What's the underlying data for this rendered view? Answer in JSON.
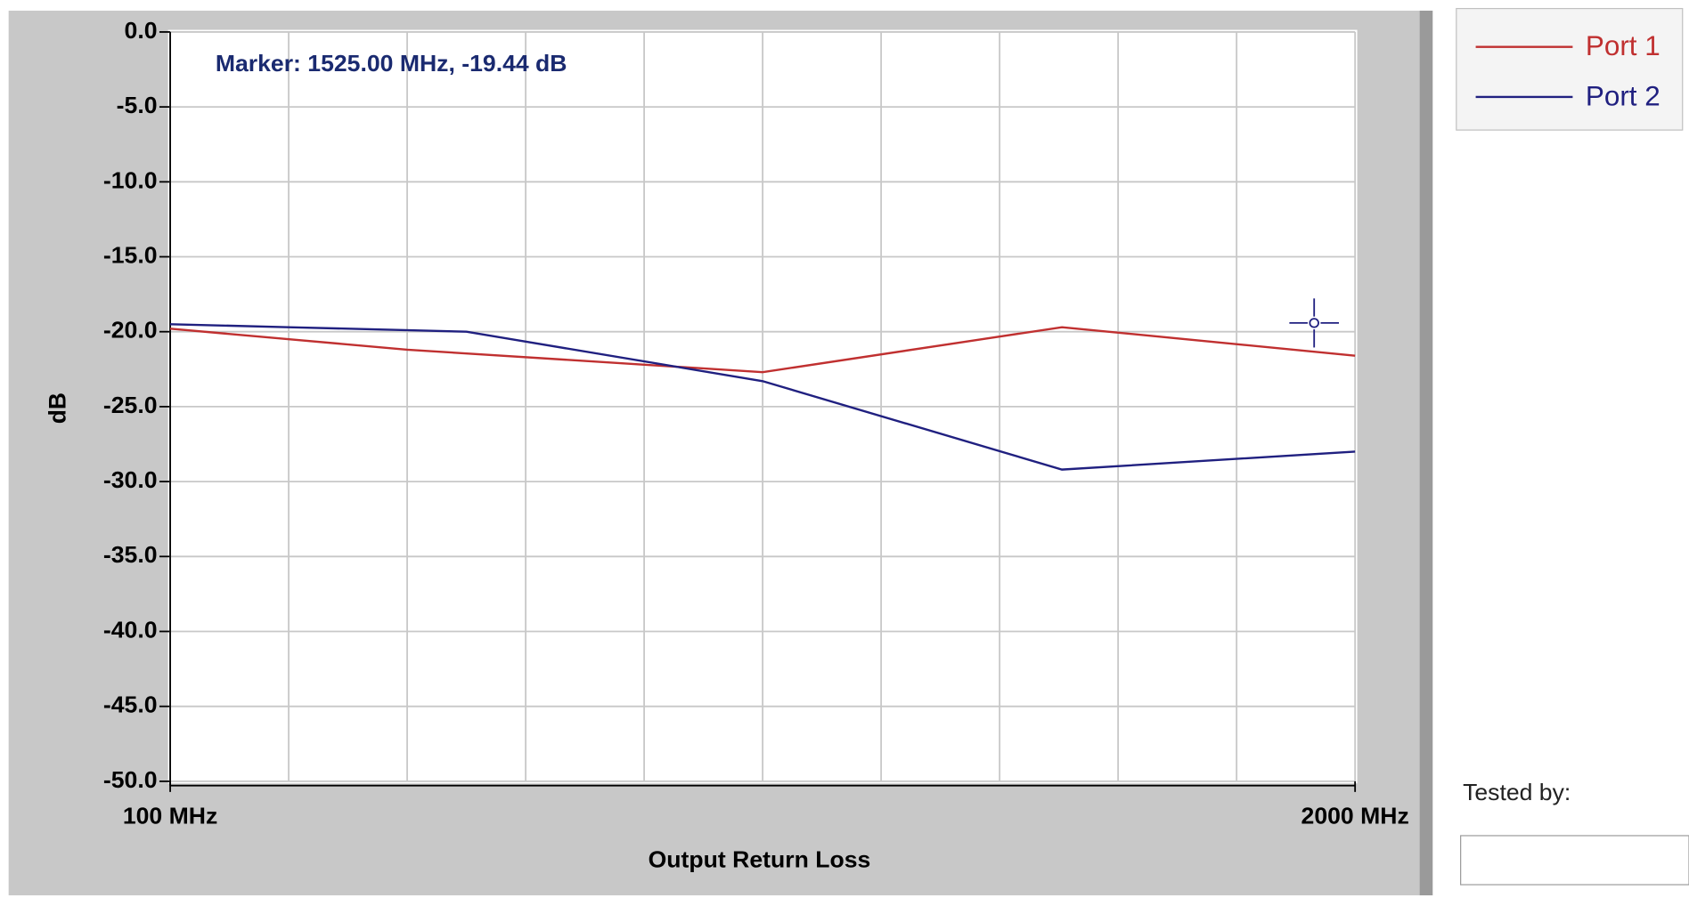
{
  "chart_data": {
    "type": "line",
    "annotation": "Marker: 1525.00 MHz, -19.44 dB",
    "xlabel": "Output Return Loss",
    "ylabel": "dB",
    "xlim": [
      100,
      2000
    ],
    "xticks": [
      {
        "value": 100,
        "label": "100 MHz"
      },
      {
        "value": 2000,
        "label": "2000 MHz"
      }
    ],
    "xgrid": [
      290,
      480,
      670,
      860,
      1050,
      1240,
      1430,
      1620,
      1810
    ],
    "ylim": [
      -50,
      0
    ],
    "yticks": [
      {
        "value": 0,
        "label": "0.0"
      },
      {
        "value": -5,
        "label": "-5.0"
      },
      {
        "value": -10,
        "label": "-10.0"
      },
      {
        "value": -15,
        "label": "-15.0"
      },
      {
        "value": -20,
        "label": "-20.0"
      },
      {
        "value": -25,
        "label": "-25.0"
      },
      {
        "value": -30,
        "label": "-30.0"
      },
      {
        "value": -35,
        "label": "-35.0"
      },
      {
        "value": -40,
        "label": "-40.0"
      },
      {
        "value": -45,
        "label": "-45.0"
      },
      {
        "value": -50,
        "label": "-50.0"
      }
    ],
    "grid": true,
    "legend": "top-right",
    "series": [
      {
        "name": "Port 1",
        "color": "#c03030",
        "x": [
          100,
          480,
          1050,
          1530,
          2000
        ],
        "values": [
          -19.8,
          -21.2,
          -22.7,
          -19.7,
          -21.6
        ]
      },
      {
        "name": "Port 2",
        "color": "#202080",
        "x": [
          100,
          290,
          575,
          1050,
          1530,
          2000
        ],
        "values": [
          -19.5,
          -19.7,
          -20.0,
          -23.3,
          -29.2,
          -28.0
        ]
      }
    ]
  },
  "form": {
    "tested_by_label": "Tested by:"
  }
}
